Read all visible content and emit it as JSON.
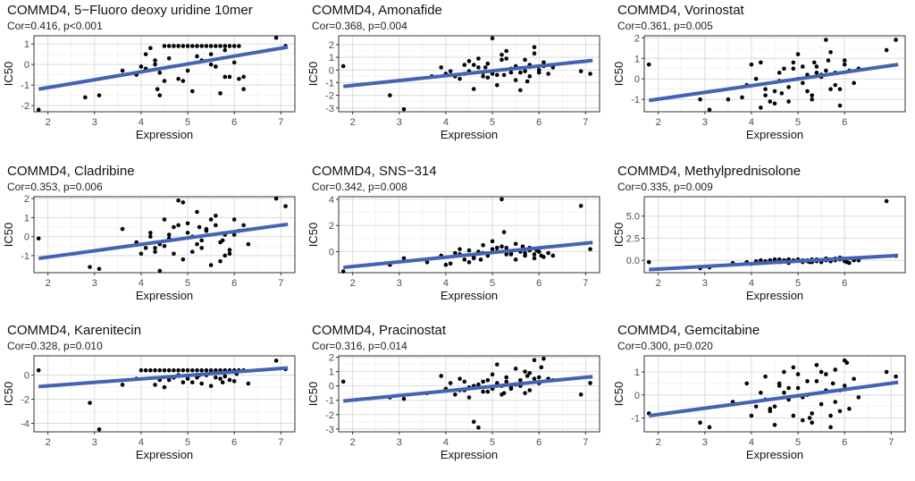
{
  "figure": {
    "title": "COMMD4 drug sensitivity correlation panels"
  },
  "colors": {
    "point": "#000000",
    "fit_line": "#4563b4",
    "grid": "#dcdcdc"
  },
  "chart_data": [
    {
      "type": "scatter",
      "title": "COMMD4, 5−Fluoro deoxy uridine 10mer",
      "subtitle": "Cor=0.416, p<0.001",
      "xlabel": "Expression",
      "ylabel": "IC50",
      "xlim": [
        1.7,
        7.3
      ],
      "ylim": [
        -2.3,
        1.4
      ],
      "xticks": [
        2,
        3,
        4,
        5,
        6,
        7
      ],
      "yticks": [
        -2,
        -1,
        0,
        1
      ],
      "fit": {
        "x": [
          1.8,
          7.15
        ],
        "y": [
          -1.2,
          0.85
        ]
      },
      "x": [
        1.8,
        2.8,
        3.1,
        3.6,
        3.9,
        4.1,
        4.2,
        4.3,
        4.35,
        4.4,
        4.5,
        4.6,
        4.7,
        4.8,
        4.9,
        5.0,
        5.1,
        5.2,
        5.3,
        5.4,
        5.5,
        5.6,
        5.7,
        5.8,
        5.9,
        6.0,
        6.1,
        4.3,
        4.5,
        4.8,
        5.0,
        5.3,
        5.6,
        5.8,
        6.0,
        6.2,
        4.1,
        4.6,
        5.1,
        5.5,
        5.9,
        4.4,
        4.9,
        5.2,
        5.7,
        6.1,
        6.9,
        7.1,
        5.5,
        5.8,
        6.2,
        4.0
      ],
      "y": [
        -2.2,
        -1.6,
        -1.5,
        -0.3,
        -0.5,
        0.5,
        0.8,
        0.2,
        -1.2,
        -1.5,
        0.9,
        0.9,
        0.9,
        0.9,
        0.9,
        0.9,
        0.9,
        0.9,
        0.9,
        0.9,
        0.9,
        0.9,
        0.9,
        0.9,
        0.9,
        0.9,
        0.9,
        0.0,
        -0.8,
        -0.7,
        -0.3,
        0.2,
        -0.1,
        -0.6,
        0.1,
        -0.6,
        -0.2,
        0.3,
        -1.3,
        0.5,
        -0.6,
        -0.4,
        -0.8,
        0.4,
        -1.4,
        -0.7,
        1.3,
        0.9,
        0.0,
        0.7,
        -1.2,
        -0.1
      ]
    },
    {
      "type": "scatter",
      "title": "COMMD4, Amonafide",
      "subtitle": "Cor=0.368, p=0.004",
      "xlabel": "Expression",
      "ylabel": "IC50",
      "xlim": [
        1.7,
        7.3
      ],
      "ylim": [
        -3.3,
        2.7
      ],
      "xticks": [
        2,
        3,
        4,
        5,
        6,
        7
      ],
      "yticks": [
        -3,
        -2,
        -1,
        0,
        1,
        2
      ],
      "fit": {
        "x": [
          1.8,
          7.15
        ],
        "y": [
          -1.3,
          0.75
        ]
      },
      "x": [
        1.8,
        2.8,
        3.1,
        3.7,
        3.9,
        4.0,
        4.2,
        4.3,
        4.4,
        4.5,
        4.6,
        4.7,
        4.8,
        4.9,
        5.0,
        5.1,
        5.2,
        5.3,
        5.4,
        5.5,
        5.6,
        5.7,
        5.8,
        5.9,
        6.0,
        6.1,
        6.2,
        4.4,
        4.7,
        4.9,
        5.2,
        5.5,
        5.8,
        6.0,
        4.5,
        5.0,
        5.4,
        5.7,
        6.1,
        4.8,
        5.3,
        5.6,
        5.9,
        6.9,
        7.1,
        4.6,
        5.1,
        6.3,
        4.1,
        5.75,
        5.25,
        4.85
      ],
      "y": [
        0.3,
        -2.0,
        -3.1,
        -0.5,
        0.2,
        -0.3,
        -0.5,
        -0.7,
        0.4,
        -0.1,
        -1.5,
        0.9,
        -0.2,
        0.5,
        2.5,
        -0.4,
        0.8,
        1.5,
        -0.2,
        0.3,
        -1.6,
        0.8,
        -0.5,
        1.3,
        0.0,
        0.6,
        -0.3,
        -0.3,
        0.2,
        -0.6,
        1.2,
        -0.8,
        0.4,
        -0.2,
        0.7,
        -0.3,
        0.1,
        -0.1,
        0.3,
        -0.5,
        0.9,
        -0.2,
        1.8,
        -0.1,
        -0.3,
        0.4,
        -1.2,
        0.2,
        -0.1,
        -0.9,
        -0.4,
        0.2
      ]
    },
    {
      "type": "scatter",
      "title": "COMMD4, Vorinostat",
      "subtitle": "Cor=0.361, p=0.005",
      "xlabel": "Expression",
      "ylabel": "IC50",
      "xlim": [
        1.7,
        7.3
      ],
      "ylim": [
        -1.6,
        2.1
      ],
      "xticks": [
        2,
        3,
        4,
        5,
        6
      ],
      "yticks": [
        -1,
        0,
        1,
        2
      ],
      "fit": {
        "x": [
          1.8,
          7.15
        ],
        "y": [
          -1.05,
          0.7
        ]
      },
      "x": [
        1.8,
        2.9,
        3.1,
        3.5,
        3.8,
        3.9,
        4.1,
        4.2,
        4.3,
        4.4,
        4.5,
        4.6,
        4.7,
        4.8,
        4.9,
        5.0,
        5.1,
        5.2,
        5.3,
        5.4,
        5.5,
        5.6,
        5.7,
        5.8,
        5.9,
        6.0,
        6.1,
        6.2,
        4.3,
        4.6,
        4.9,
        5.2,
        5.5,
        5.8,
        6.0,
        4.0,
        4.5,
        5.0,
        5.3,
        5.6,
        5.9,
        4.8,
        5.1,
        5.7,
        6.9,
        7.1,
        4.2,
        5.4,
        6.3,
        5.65,
        4.65,
        5.35
      ],
      "y": [
        0.7,
        -1.0,
        -1.5,
        -1.0,
        -0.9,
        -0.3,
        0.0,
        0.8,
        -0.5,
        -1.1,
        -0.6,
        0.3,
        0.5,
        -0.4,
        0.8,
        1.2,
        -0.2,
        0.2,
        -0.8,
        0.6,
        0.1,
        1.9,
        -0.5,
        0.3,
        -1.3,
        0.9,
        0.4,
        -0.2,
        -0.8,
        -0.1,
        0.5,
        -0.6,
        0.2,
        -0.3,
        0.7,
        0.7,
        -1.2,
        0.0,
        -1.0,
        0.4,
        -0.5,
        -1.1,
        0.6,
        1.3,
        1.4,
        1.9,
        -1.4,
        0.3,
        0.5,
        0.9,
        -0.7,
        0.8
      ]
    },
    {
      "type": "scatter",
      "title": "COMMD4, Cladribine",
      "subtitle": "Cor=0.353, p=0.006",
      "xlabel": "Expression",
      "ylabel": "IC50",
      "xlim": [
        1.7,
        7.3
      ],
      "ylim": [
        -1.9,
        2.1
      ],
      "xticks": [
        2,
        3,
        4,
        5,
        6,
        7
      ],
      "yticks": [
        -1,
        0,
        1,
        2
      ],
      "fit": {
        "x": [
          1.8,
          7.15
        ],
        "y": [
          -1.15,
          0.65
        ]
      },
      "x": [
        1.8,
        2.9,
        3.1,
        3.6,
        3.9,
        4.0,
        4.1,
        4.2,
        4.3,
        4.4,
        4.5,
        4.6,
        4.7,
        4.8,
        4.9,
        5.0,
        5.1,
        5.2,
        5.3,
        5.4,
        5.5,
        5.6,
        5.7,
        5.8,
        5.9,
        6.0,
        6.1,
        6.2,
        4.3,
        4.6,
        4.9,
        5.2,
        5.5,
        5.8,
        6.0,
        4.5,
        5.0,
        5.3,
        5.6,
        5.9,
        4.8,
        5.1,
        5.4,
        5.7,
        6.9,
        7.1,
        4.2,
        6.3,
        4.7,
        5.25,
        5.75,
        4.4
      ],
      "y": [
        -0.1,
        -1.6,
        -1.7,
        0.4,
        -0.3,
        -0.9,
        -0.6,
        0.2,
        -0.8,
        -0.4,
        0.9,
        -0.1,
        0.5,
        1.9,
        -1.2,
        0.7,
        0.0,
        1.3,
        -0.6,
        0.3,
        -1.5,
        0.6,
        -0.3,
        0.1,
        -0.9,
        0.9,
        0.3,
        0.6,
        -0.6,
        0.1,
        1.8,
        -0.4,
        0.9,
        -1.0,
        0.1,
        -0.5,
        0.2,
        -0.2,
        1.1,
        -0.7,
        0.6,
        -0.8,
        0.4,
        -1.3,
        2.0,
        1.6,
        0.0,
        -0.4,
        -0.9,
        0.5,
        -0.2,
        -1.8
      ]
    },
    {
      "type": "scatter",
      "title": "COMMD4, SNS−314",
      "subtitle": "Cor=0.342, p=0.008",
      "xlabel": "Expression",
      "ylabel": "IC50",
      "xlim": [
        1.7,
        7.3
      ],
      "ylim": [
        -1.6,
        4.2
      ],
      "xticks": [
        2,
        3,
        4,
        5,
        6,
        7
      ],
      "yticks": [
        0,
        2,
        4
      ],
      "fit": {
        "x": [
          1.8,
          7.15
        ],
        "y": [
          -1.2,
          0.7
        ]
      },
      "x": [
        1.8,
        2.8,
        3.1,
        3.6,
        3.9,
        4.1,
        4.2,
        4.3,
        4.4,
        4.5,
        4.6,
        4.7,
        4.8,
        4.9,
        5.0,
        5.1,
        5.2,
        5.3,
        5.4,
        5.5,
        5.6,
        5.7,
        5.8,
        5.9,
        6.0,
        6.1,
        6.2,
        4.3,
        4.6,
        4.9,
        5.2,
        5.5,
        5.8,
        6.0,
        4.5,
        5.0,
        5.3,
        5.6,
        5.9,
        4.8,
        5.1,
        5.4,
        5.7,
        6.9,
        7.1,
        4.0,
        6.3,
        5.25,
        5.65,
        4.75,
        5.95,
        6.05
      ],
      "y": [
        -1.5,
        -1.0,
        -0.5,
        -0.8,
        -0.3,
        -0.9,
        -0.1,
        0.2,
        -0.6,
        0.1,
        -0.4,
        0.0,
        0.5,
        -0.2,
        0.2,
        0.0,
        4.0,
        0.3,
        -0.1,
        0.6,
        0.0,
        -0.3,
        0.1,
        -0.2,
        0.0,
        -0.4,
        -0.1,
        -0.2,
        -0.5,
        -0.3,
        0.4,
        -0.6,
        0.3,
        0.0,
        -0.8,
        0.8,
        -0.2,
        0.1,
        -0.5,
        -0.1,
        0.3,
        -0.2,
        -0.1,
        3.5,
        0.2,
        -1.0,
        -0.3,
        1.5,
        0.4,
        -0.6,
        0.1,
        -0.3
      ]
    },
    {
      "type": "scatter",
      "title": "COMMD4, Methylprednisolone",
      "subtitle": "Cor=0.335, p=0.009",
      "xlabel": "Expression",
      "ylabel": "IC50",
      "xlim": [
        1.7,
        7.3
      ],
      "ylim": [
        -1.4,
        7.2
      ],
      "xticks": [
        2,
        3,
        4,
        5,
        6
      ],
      "yticks": [
        0.0,
        2.5,
        5.0
      ],
      "fit": {
        "x": [
          1.8,
          7.15
        ],
        "y": [
          -1.05,
          0.55
        ]
      },
      "x": [
        1.8,
        2.9,
        3.1,
        3.6,
        3.9,
        4.1,
        4.2,
        4.3,
        4.4,
        4.5,
        4.6,
        4.7,
        4.8,
        4.9,
        5.0,
        5.1,
        5.2,
        5.3,
        5.4,
        5.5,
        5.6,
        5.7,
        5.8,
        5.9,
        6.0,
        6.1,
        6.2,
        4.3,
        4.6,
        4.9,
        5.2,
        5.5,
        5.8,
        6.0,
        4.5,
        5.0,
        5.3,
        5.6,
        5.9,
        4.8,
        5.1,
        5.4,
        5.7,
        6.9,
        7.1,
        4.0,
        6.3,
        5.25,
        5.65,
        4.75,
        5.95,
        6.05
      ],
      "y": [
        -0.2,
        -0.9,
        -0.8,
        -0.3,
        -0.2,
        -0.1,
        0.0,
        -0.1,
        0.0,
        0.1,
        -0.2,
        0.0,
        0.1,
        -0.1,
        0.0,
        -0.2,
        0.0,
        0.1,
        -0.1,
        -0.2,
        0.2,
        -0.1,
        0.0,
        0.3,
        0.1,
        -0.3,
        0.0,
        -0.2,
        0.1,
        0.0,
        -0.1,
        0.0,
        0.2,
        -0.1,
        0.0,
        0.1,
        -0.2,
        0.0,
        0.1,
        -0.3,
        0.0,
        0.1,
        -0.1,
        6.7,
        0.5,
        -0.4,
        0.0,
        -0.2,
        0.1,
        -0.1,
        0.2,
        -0.2
      ]
    },
    {
      "type": "scatter",
      "title": "COMMD4, Karenitecin",
      "subtitle": "Cor=0.328, p=0.010",
      "xlabel": "Expression",
      "ylabel": "IC50",
      "xlim": [
        1.7,
        7.3
      ],
      "ylim": [
        -4.7,
        1.6
      ],
      "xticks": [
        2,
        3,
        4,
        5,
        6,
        7
      ],
      "yticks": [
        -4,
        -2,
        0
      ],
      "fit": {
        "x": [
          1.8,
          7.15
        ],
        "y": [
          -0.95,
          0.6
        ]
      },
      "x": [
        1.8,
        2.9,
        3.1,
        3.6,
        3.9,
        4.0,
        4.1,
        4.2,
        4.3,
        4.4,
        4.5,
        4.6,
        4.7,
        4.8,
        4.9,
        5.0,
        5.1,
        5.2,
        5.3,
        5.4,
        5.5,
        5.6,
        5.7,
        5.8,
        5.9,
        6.0,
        6.1,
        6.2,
        4.3,
        4.6,
        4.9,
        5.2,
        5.5,
        5.8,
        6.0,
        4.5,
        5.0,
        5.3,
        5.6,
        5.9,
        4.8,
        5.1,
        5.4,
        5.7,
        6.9,
        7.1,
        6.3,
        4.7,
        5.25,
        5.75,
        4.4,
        6.05
      ],
      "y": [
        0.4,
        -2.3,
        -4.5,
        -0.8,
        -0.3,
        0.4,
        0.4,
        0.4,
        0.4,
        0.4,
        0.4,
        0.4,
        0.4,
        0.4,
        0.4,
        0.4,
        0.4,
        0.4,
        0.4,
        0.4,
        0.4,
        0.4,
        0.4,
        0.4,
        0.4,
        0.4,
        0.4,
        0.4,
        -0.8,
        -0.4,
        -0.6,
        -0.2,
        -0.9,
        -0.1,
        -0.5,
        -1.0,
        -0.3,
        -0.7,
        -0.2,
        -0.4,
        0.0,
        -0.6,
        0.0,
        -0.3,
        1.2,
        0.5,
        -0.7,
        -0.2,
        0.0,
        -0.6,
        -0.4,
        0.1
      ]
    },
    {
      "type": "scatter",
      "title": "COMMD4, Pracinostat",
      "subtitle": "Cor=0.316, p=0.014",
      "xlabel": "Expression",
      "ylabel": "IC50",
      "xlim": [
        1.7,
        7.3
      ],
      "ylim": [
        -3.2,
        2.1
      ],
      "xticks": [
        2,
        3,
        4,
        5,
        6,
        7
      ],
      "yticks": [
        -3,
        -2,
        -1,
        0,
        1,
        2
      ],
      "fit": {
        "x": [
          1.8,
          7.15
        ],
        "y": [
          -1.05,
          0.65
        ]
      },
      "x": [
        1.8,
        2.8,
        3.1,
        3.6,
        3.9,
        4.0,
        4.1,
        4.2,
        4.3,
        4.4,
        4.5,
        4.6,
        4.7,
        4.8,
        4.9,
        5.0,
        5.1,
        5.2,
        5.3,
        5.4,
        5.5,
        5.6,
        5.7,
        5.8,
        5.9,
        6.0,
        6.1,
        6.2,
        4.3,
        4.6,
        4.9,
        5.2,
        5.5,
        5.8,
        6.0,
        4.5,
        5.0,
        5.3,
        5.6,
        5.9,
        4.8,
        5.1,
        5.4,
        5.7,
        6.9,
        7.1,
        6.3,
        4.7,
        5.25,
        5.75,
        4.4,
        6.05
      ],
      "y": [
        0.3,
        -0.8,
        -0.9,
        -0.5,
        0.7,
        -0.2,
        0.2,
        -0.6,
        0.5,
        -0.3,
        -0.1,
        -2.5,
        -2.9,
        0.3,
        -0.4,
        0.8,
        1.5,
        0.0,
        0.6,
        -0.2,
        1.2,
        0.4,
        -0.5,
        0.9,
        1.8,
        0.2,
        1.9,
        0.5,
        -0.3,
        0.0,
        0.4,
        -0.6,
        0.1,
        -0.3,
        0.6,
        -0.8,
        -0.2,
        0.3,
        0.0,
        0.5,
        -0.4,
        0.2,
        -0.1,
        1.0,
        -0.6,
        0.2,
        0.4,
        0.1,
        -0.5,
        0.7,
        0.3,
        1.3
      ]
    },
    {
      "type": "scatter",
      "title": "COMMD4, Gemcitabine",
      "subtitle": "Cor=0.300, p=0.020",
      "xlabel": "Expression",
      "ylabel": "IC50",
      "xlim": [
        1.7,
        7.3
      ],
      "ylim": [
        -1.6,
        1.7
      ],
      "xticks": [
        2,
        3,
        4,
        5,
        6,
        7
      ],
      "yticks": [
        -1,
        0,
        1
      ],
      "fit": {
        "x": [
          1.8,
          7.15
        ],
        "y": [
          -0.9,
          0.55
        ]
      },
      "x": [
        1.8,
        2.9,
        3.1,
        3.6,
        3.9,
        4.0,
        4.1,
        4.2,
        4.3,
        4.4,
        4.5,
        4.6,
        4.7,
        4.8,
        4.9,
        5.0,
        5.1,
        5.2,
        5.3,
        5.4,
        5.5,
        5.6,
        5.7,
        5.8,
        5.9,
        6.0,
        6.1,
        6.2,
        4.3,
        4.6,
        4.9,
        5.2,
        5.5,
        5.8,
        6.0,
        4.5,
        5.0,
        5.3,
        5.6,
        5.9,
        4.8,
        5.1,
        5.4,
        5.7,
        6.9,
        7.1,
        6.3,
        4.7,
        5.25,
        5.75,
        4.4,
        6.05
      ],
      "y": [
        -0.8,
        -1.2,
        -1.4,
        -0.3,
        0.5,
        -0.9,
        -0.5,
        0.1,
        0.8,
        -0.7,
        -1.3,
        0.4,
        1.0,
        -0.2,
        1.2,
        0.3,
        -1.1,
        0.6,
        -0.8,
        1.3,
        -0.4,
        0.9,
        -1.4,
        1.1,
        0.2,
        1.5,
        -0.6,
        0.7,
        -0.2,
        0.5,
        -0.9,
        0.0,
        1.0,
        -0.3,
        0.4,
        -0.5,
        0.9,
        -1.2,
        0.2,
        -0.7,
        0.3,
        -0.1,
        0.6,
        -0.9,
        1.0,
        0.8,
        -0.1,
        0.1,
        -1.0,
        0.5,
        -0.6,
        1.4
      ]
    }
  ]
}
